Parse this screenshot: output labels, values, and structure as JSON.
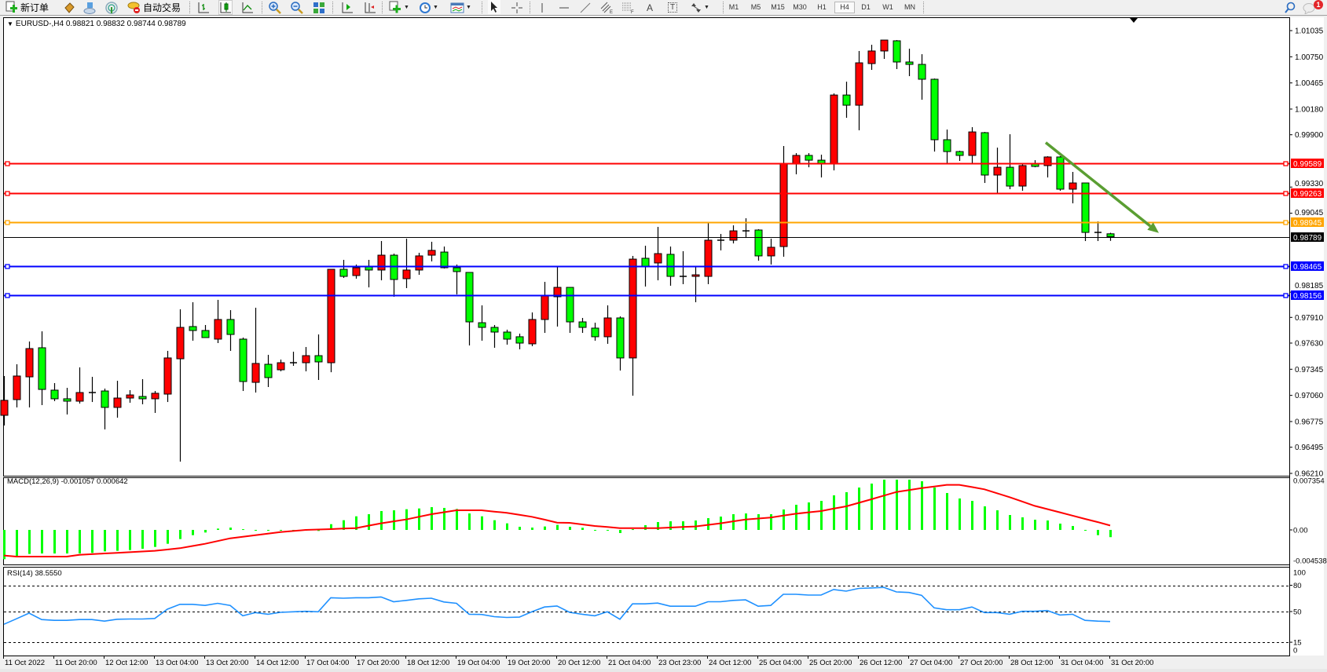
{
  "toolbar": {
    "new_order_label": "新订单",
    "auto_trading_label": "自动交易",
    "text_tool_glyph": "A",
    "label_tool_glyph": "T",
    "timeframes": [
      "M1",
      "M5",
      "M15",
      "M30",
      "H1",
      "H4",
      "D1",
      "W1",
      "MN"
    ],
    "active_timeframe": "H4",
    "notification_count": "1",
    "icons": [
      "new-order-icon",
      "market-book-icon",
      "cloud-icon",
      "signals-icon",
      "auto-trading-icon",
      "bar-chart-icon",
      "candlestick-icon",
      "line-chart-icon",
      "zoom-in-icon",
      "zoom-out-icon",
      "tile-windows-icon",
      "auto-scroll-icon",
      "chart-shift-icon",
      "new-chart-icon",
      "periods-clock-icon",
      "templates-icon",
      "cursor-icon",
      "crosshair-icon",
      "vertical-line-icon",
      "horizontal-line-icon",
      "trendline-icon",
      "equidistant-channel-icon",
      "fibonacci-icon",
      "text-icon",
      "text-label-icon",
      "arrows-icon",
      "search-icon",
      "notification-icon"
    ]
  },
  "chart_header": {
    "symbol_line": "EURUSD-,H4  0.98821 0.98832 0.98744 0.98789"
  },
  "colors": {
    "bull_candle": "#ff0000",
    "bear_candle": "#00ff00",
    "resistance": "#ff0000",
    "pivot": "#ffa500",
    "support": "#0000ff",
    "current_price": "#000000",
    "macd_histogram": "#00ff00",
    "macd_signal": "#ff0000",
    "rsi_line": "#1e90ff",
    "trend_arrow": "#5a9e32"
  },
  "chart_data": [
    {
      "type": "candlestick",
      "symbol": "EURUSD-",
      "timeframe": "H4",
      "ylim": [
        0.9621,
        1.01035
      ],
      "price_ticks": [
        "1.01035",
        "1.00750",
        "1.00465",
        "1.00180",
        "0.99900",
        "0.99330",
        "0.99045",
        "0.98185",
        "0.97910",
        "0.97630",
        "0.97345",
        "0.97060",
        "0.96775",
        "0.96495",
        "0.96210"
      ],
      "time_labels": [
        "11 Oct 2022",
        "11 Oct 20:00",
        "12 Oct 12:00",
        "13 Oct 04:00",
        "13 Oct 20:00",
        "14 Oct 12:00",
        "17 Oct 04:00",
        "17 Oct 20:00",
        "18 Oct 12:00",
        "19 Oct 04:00",
        "19 Oct 20:00",
        "20 Oct 12:00",
        "21 Oct 04:00",
        "23 Oct 23:00",
        "24 Oct 12:00",
        "25 Oct 04:00",
        "25 Oct 20:00",
        "26 Oct 12:00",
        "27 Oct 04:00",
        "27 Oct 20:00",
        "28 Oct 12:00",
        "31 Oct 04:00",
        "31 Oct 20:00"
      ],
      "levels": [
        {
          "price": "0.99589",
          "kind": "resistance",
          "color": "#ff0000"
        },
        {
          "price": "0.99263",
          "kind": "resistance",
          "color": "#ff0000"
        },
        {
          "price": "0.98945",
          "kind": "pivot",
          "color": "#ffa500"
        },
        {
          "price": "0.98465",
          "kind": "support",
          "color": "#0000ff"
        },
        {
          "price": "0.98156",
          "kind": "support",
          "color": "#0000ff"
        }
      ],
      "current_price": "0.98789",
      "trend_arrow": {
        "from_price": 0.99815,
        "to_price": 0.9883,
        "direction": "down",
        "color": "#5a9e32"
      },
      "ohlc": [
        [
          0.96843,
          0.97271,
          0.96732,
          0.97006
        ],
        [
          0.97014,
          0.97399,
          0.96929,
          0.97271
        ],
        [
          0.97262,
          0.97647,
          0.96929,
          0.9757
        ],
        [
          0.97579,
          0.97758,
          0.96954,
          0.97125
        ],
        [
          0.97117,
          0.97194,
          0.96997,
          0.97023
        ],
        [
          0.97023,
          0.97142,
          0.96852,
          0.96997
        ],
        [
          0.96997,
          0.97365,
          0.96971,
          0.97091
        ],
        [
          0.97091,
          0.97262,
          0.96988,
          0.97091
        ],
        [
          0.97108,
          0.97134,
          0.96689,
          0.96929
        ],
        [
          0.96929,
          0.97219,
          0.96817,
          0.97031
        ],
        [
          0.97031,
          0.97117,
          0.9698,
          0.97065
        ],
        [
          0.97048,
          0.97237,
          0.96963,
          0.97023
        ],
        [
          0.97023,
          0.97108,
          0.96869,
          0.97083
        ],
        [
          0.97074,
          0.97545,
          0.96988,
          0.97468
        ],
        [
          0.97459,
          0.97998,
          0.96338,
          0.97801
        ],
        [
          0.9781,
          0.98075,
          0.97656,
          0.97767
        ],
        [
          0.97767,
          0.97827,
          0.9769,
          0.9769
        ],
        [
          0.97673,
          0.98101,
          0.9763,
          0.97887
        ],
        [
          0.97887,
          0.97989,
          0.97545,
          0.97724
        ],
        [
          0.97673,
          0.9769,
          0.97108,
          0.97211
        ],
        [
          0.97202,
          0.98015,
          0.97091,
          0.97408
        ],
        [
          0.97399,
          0.97502,
          0.97151,
          0.97254
        ],
        [
          0.97339,
          0.9745,
          0.97322,
          0.97416
        ],
        [
          0.97416,
          0.97536,
          0.97382,
          0.97416
        ],
        [
          0.97416,
          0.97587,
          0.97322,
          0.97493
        ],
        [
          0.97493,
          0.97724,
          0.97228,
          0.97425
        ],
        [
          0.97416,
          0.98434,
          0.97313,
          0.98434
        ],
        [
          0.98434,
          0.98537,
          0.9834,
          0.98357
        ],
        [
          0.98366,
          0.98486,
          0.98332,
          0.98451
        ],
        [
          0.98468,
          0.98537,
          0.98237,
          0.98426
        ],
        [
          0.98426,
          0.98742,
          0.98314,
          0.98588
        ],
        [
          0.98588,
          0.98605,
          0.98135,
          0.98323
        ],
        [
          0.98332,
          0.98768,
          0.98229,
          0.98426
        ],
        [
          0.98426,
          0.98614,
          0.98374,
          0.9858
        ],
        [
          0.98588,
          0.98734,
          0.9852,
          0.9864
        ],
        [
          0.98622,
          0.98682,
          0.98443,
          0.98451
        ],
        [
          0.98451,
          0.98486,
          0.9816,
          0.98409
        ],
        [
          0.984,
          0.984,
          0.97604,
          0.97861
        ],
        [
          0.97852,
          0.98041,
          0.97656,
          0.97801
        ],
        [
          0.97801,
          0.97827,
          0.97579,
          0.9775
        ],
        [
          0.9775,
          0.97776,
          0.97613,
          0.97673
        ],
        [
          0.97699,
          0.97733,
          0.97562,
          0.9763
        ],
        [
          0.97622,
          0.97964,
          0.97596,
          0.97887
        ],
        [
          0.97887,
          0.98297,
          0.97741,
          0.98143
        ],
        [
          0.98135,
          0.98468,
          0.9781,
          0.98237
        ],
        [
          0.98237,
          0.98237,
          0.97741,
          0.97861
        ],
        [
          0.97861,
          0.97904,
          0.97741,
          0.97801
        ],
        [
          0.97793,
          0.97852,
          0.97656,
          0.97699
        ],
        [
          0.97699,
          0.98041,
          0.97622,
          0.97904
        ],
        [
          0.97904,
          0.97921,
          0.97331,
          0.97468
        ],
        [
          0.97468,
          0.9858,
          0.97057,
          0.98545
        ],
        [
          0.98554,
          0.98691,
          0.98246,
          0.9846
        ],
        [
          0.98503,
          0.98896,
          0.98314,
          0.98605
        ],
        [
          0.98597,
          0.98682,
          0.98255,
          0.98357
        ],
        [
          0.98357,
          0.98631,
          0.98272,
          0.98357
        ],
        [
          0.98357,
          0.9846,
          0.98075,
          0.98374
        ],
        [
          0.98357,
          0.98948,
          0.98272,
          0.98751
        ],
        [
          0.98751,
          0.98819,
          0.9864,
          0.98751
        ],
        [
          0.98751,
          0.98913,
          0.98716,
          0.98853
        ],
        [
          0.98853,
          0.9899,
          0.98776,
          0.98853
        ],
        [
          0.98862,
          0.98871,
          0.98528,
          0.9858
        ],
        [
          0.9858,
          0.98768,
          0.98486,
          0.98674
        ],
        [
          0.98682,
          0.99777,
          0.98571,
          0.99581
        ],
        [
          0.99589,
          0.997,
          0.99469,
          0.99675
        ],
        [
          0.99675,
          0.997,
          0.99546,
          0.99623
        ],
        [
          0.99623,
          0.99683,
          0.99435,
          0.99581
        ],
        [
          0.99581,
          1.00351,
          0.99512,
          1.00333
        ],
        [
          1.00333,
          1.00479,
          1.00085,
          1.00222
        ],
        [
          1.00222,
          1.00813,
          0.99949,
          1.00684
        ],
        [
          1.00676,
          1.00881,
          1.00607,
          1.00813
        ],
        [
          1.00813,
          1.00932,
          1.00727,
          1.00932
        ],
        [
          1.00924,
          1.00932,
          1.00616,
          1.00693
        ],
        [
          1.00693,
          1.00838,
          1.00539,
          1.00667
        ],
        [
          1.00667,
          1.00778,
          1.00282,
          1.00505
        ],
        [
          1.00505,
          1.00513,
          0.99717,
          0.99846
        ],
        [
          0.99846,
          0.99957,
          0.99581,
          0.99717
        ],
        [
          0.99717,
          0.99726,
          0.99615,
          0.99675
        ],
        [
          0.99675,
          0.99983,
          0.99581,
          0.99931
        ],
        [
          0.99923,
          0.99931,
          0.99375,
          0.99461
        ],
        [
          0.99461,
          0.9976,
          0.99264,
          0.99546
        ],
        [
          0.99546,
          0.99906,
          0.99307,
          0.99341
        ],
        [
          0.99341,
          0.99581,
          0.9929,
          0.99564
        ],
        [
          0.99581,
          0.99623,
          0.99546,
          0.99555
        ],
        [
          0.99564,
          0.99666,
          0.99435,
          0.99658
        ],
        [
          0.99658,
          0.99666,
          0.9929,
          0.99307
        ],
        [
          0.99307,
          0.99495,
          0.99153,
          0.99375
        ],
        [
          0.99375,
          0.99375,
          0.98742,
          0.98836
        ],
        [
          0.98836,
          0.98956,
          0.98742,
          0.98836
        ],
        [
          0.98821,
          0.98832,
          0.98744,
          0.98789
        ]
      ]
    },
    {
      "type": "bar+line",
      "label": "MACD(12,26,9) -0.001057 0.000642",
      "ylim": [
        -0.004538,
        0.007354
      ],
      "axis_labels": [
        "0.007354",
        "0.00",
        "-0.004538"
      ],
      "histogram": [
        -0.00429,
        -0.00402,
        -0.00352,
        -0.00345,
        -0.00345,
        -0.00345,
        -0.00345,
        -0.00337,
        -0.00314,
        -0.00306,
        -0.00295,
        -0.00276,
        -0.00249,
        -0.00203,
        -0.00134,
        -0.00077,
        -0.00038,
        0.00019,
        0.00034,
        0.00011,
        -4e-05,
        -0.00011,
        -8e-05,
        -8e-05,
        0.0,
        -0.00015,
        0.00084,
        0.00142,
        0.00199,
        0.0023,
        0.00276,
        0.00287,
        0.00303,
        0.00314,
        0.00333,
        0.00322,
        0.00306,
        0.00241,
        0.00199,
        0.00142,
        0.00096,
        0.00046,
        0.00034,
        0.0005,
        0.00073,
        0.00046,
        0.00031,
        -8e-05,
        -4e-05,
        -0.00046,
        0.00011,
        0.00069,
        0.00115,
        0.00126,
        0.00126,
        0.00138,
        0.00172,
        0.00195,
        0.0023,
        0.00241,
        0.0023,
        0.0023,
        0.00299,
        0.00368,
        0.00402,
        0.00425,
        0.00506,
        0.00552,
        0.0062,
        0.00678,
        0.00735,
        0.00735,
        0.00735,
        0.00712,
        0.0062,
        0.0054,
        0.0046,
        0.00425,
        0.00345,
        0.00287,
        0.00218,
        0.00184,
        0.00149,
        0.00138,
        0.00092,
        0.00057,
        -0.00011,
        -0.00077,
        -0.00106
      ],
      "signal": [
        -0.00375,
        -0.00391,
        -0.00391,
        -0.00391,
        -0.00391,
        -0.00391,
        -0.00364,
        -0.00355,
        -0.00345,
        -0.00336,
        -0.00326,
        -0.00316,
        -0.00306,
        -0.00287,
        -0.00268,
        -0.00236,
        -0.00203,
        -0.00163,
        -0.00123,
        -0.001,
        -0.00077,
        -0.00054,
        -0.00031,
        -0.00016,
        0.0,
        6e-05,
        0.00011,
        0.00019,
        0.00027,
        0.00062,
        0.00096,
        0.00125,
        0.00153,
        0.00192,
        0.0023,
        0.00259,
        0.00287,
        0.00287,
        0.00287,
        0.00268,
        0.00249,
        0.00221,
        0.00192,
        0.0015,
        0.00107,
        0.00103,
        0.0008,
        0.00057,
        0.00042,
        0.00027,
        0.00027,
        0.00027,
        0.00027,
        0.00035,
        0.00042,
        0.0005,
        0.00073,
        0.00096,
        0.00125,
        0.00153,
        0.00167,
        0.0018,
        0.00209,
        0.00237,
        0.00257,
        0.00276,
        0.00311,
        0.00345,
        0.00397,
        0.00448,
        0.00502,
        0.00555,
        0.00584,
        0.00613,
        0.00636,
        0.00659,
        0.00659,
        0.00627,
        0.00594,
        0.00537,
        0.00479,
        0.00416,
        0.00352,
        0.00305,
        0.00257,
        0.00209,
        0.00161,
        0.00115,
        0.00064
      ]
    },
    {
      "type": "line",
      "label": "RSI(14) 38.5550",
      "ylim": [
        0,
        100
      ],
      "levels": [
        80,
        50,
        15
      ],
      "axis_labels": [
        "100",
        "80",
        "50",
        "15",
        "0"
      ],
      "values": [
        35.5,
        41.8,
        48.2,
        40.9,
        40.0,
        40.0,
        40.9,
        40.9,
        39.1,
        41.2,
        41.5,
        41.5,
        42.1,
        52.7,
        58.2,
        58.2,
        57.0,
        59.4,
        57.0,
        45.2,
        48.8,
        47.0,
        49.1,
        49.7,
        50.3,
        49.7,
        65.8,
        65.2,
        65.8,
        65.8,
        66.7,
        61.2,
        62.7,
        64.5,
        65.2,
        60.9,
        59.4,
        47.0,
        46.7,
        44.2,
        43.3,
        43.6,
        49.7,
        55.2,
        56.4,
        49.1,
        47.0,
        45.2,
        49.7,
        41.2,
        58.8,
        58.8,
        59.7,
        56.1,
        56.1,
        56.1,
        61.2,
        61.2,
        62.7,
        63.3,
        56.1,
        57.0,
        69.7,
        69.7,
        68.8,
        68.8,
        75.2,
        73.3,
        76.4,
        77.0,
        77.6,
        72.4,
        71.8,
        68.5,
        54.2,
        52.1,
        52.1,
        55.2,
        48.8,
        48.8,
        47.0,
        50.3,
        50.3,
        51.2,
        46.1,
        47.0,
        40.0,
        39.1,
        38.6
      ]
    }
  ]
}
